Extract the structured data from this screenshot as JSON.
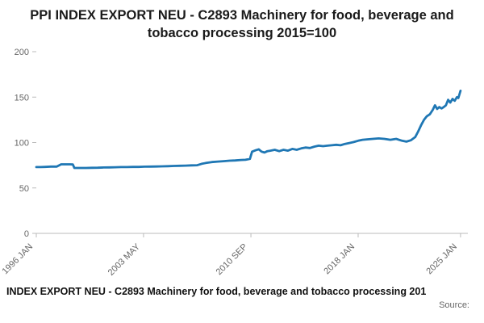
{
  "title": "PPI INDEX EXPORT NEU - C2893 Machinery for food, beverage and tobacco processing 2015=100",
  "legend": "INDEX EXPORT NEU - C2893 Machinery for food, beverage and tobacco processing 201",
  "source_label": "Source:",
  "colors": {
    "line": "#1f77b4",
    "axis": "#bbbbbb",
    "tick_text": "#666666"
  },
  "chart_data": {
    "type": "line",
    "title": "PPI INDEX EXPORT NEU - C2893 Machinery for food, beverage and tobacco processing 2015=100",
    "xlabel": "",
    "ylabel": "",
    "xlim": [
      1996.0,
      2025.5
    ],
    "ylim": [
      0,
      200
    ],
    "grid": false,
    "legend_position": "bottom",
    "yticks": [
      0,
      50,
      100,
      150,
      200
    ],
    "xticks": [
      {
        "label": "1996 JAN",
        "x": 1996.0
      },
      {
        "label": "2003 MAY",
        "x": 2003.33
      },
      {
        "label": "2010 SEP",
        "x": 2010.67
      },
      {
        "label": "2018 JAN",
        "x": 2018.0
      },
      {
        "label": "2025 JAN",
        "x": 2025.0
      }
    ],
    "series": [
      {
        "name": "INDEX EXPORT NEU - C2893 Machinery for food, beverage and tobacco processing",
        "color": "#1f77b4",
        "points": [
          [
            1996.0,
            73
          ],
          [
            1996.3,
            73
          ],
          [
            1996.6,
            73.2
          ],
          [
            1997.0,
            73.5
          ],
          [
            1997.4,
            73.5
          ],
          [
            1997.7,
            76
          ],
          [
            1998.0,
            76
          ],
          [
            1998.3,
            76
          ],
          [
            1998.5,
            75.8
          ],
          [
            1998.6,
            72
          ],
          [
            1999.0,
            72
          ],
          [
            1999.4,
            72
          ],
          [
            1999.8,
            72.2
          ],
          [
            2000.2,
            72.3
          ],
          [
            2000.6,
            72.5
          ],
          [
            2001.0,
            72.6
          ],
          [
            2001.4,
            72.8
          ],
          [
            2001.8,
            73
          ],
          [
            2002.2,
            73
          ],
          [
            2002.6,
            73.2
          ],
          [
            2003.0,
            73.2
          ],
          [
            2003.4,
            73.4
          ],
          [
            2003.8,
            73.5
          ],
          [
            2004.2,
            73.6
          ],
          [
            2004.6,
            73.8
          ],
          [
            2005.0,
            74
          ],
          [
            2005.4,
            74.2
          ],
          [
            2005.8,
            74.4
          ],
          [
            2006.2,
            74.6
          ],
          [
            2006.6,
            74.8
          ],
          [
            2007.0,
            75
          ],
          [
            2007.3,
            76.5
          ],
          [
            2007.6,
            77.5
          ],
          [
            2008.0,
            78.5
          ],
          [
            2008.4,
            79
          ],
          [
            2008.8,
            79.5
          ],
          [
            2009.2,
            80
          ],
          [
            2009.6,
            80.3
          ],
          [
            2010.0,
            80.8
          ],
          [
            2010.3,
            81
          ],
          [
            2010.6,
            82
          ],
          [
            2010.75,
            90
          ],
          [
            2011.0,
            91.5
          ],
          [
            2011.2,
            92.5
          ],
          [
            2011.4,
            90
          ],
          [
            2011.6,
            89
          ],
          [
            2011.8,
            90.5
          ],
          [
            2012.0,
            91
          ],
          [
            2012.3,
            92
          ],
          [
            2012.6,
            90.5
          ],
          [
            2012.9,
            92
          ],
          [
            2013.2,
            91
          ],
          [
            2013.5,
            93
          ],
          [
            2013.8,
            92
          ],
          [
            2014.1,
            93.5
          ],
          [
            2014.4,
            94.5
          ],
          [
            2014.7,
            94
          ],
          [
            2015.0,
            95.5
          ],
          [
            2015.3,
            96.5
          ],
          [
            2015.6,
            96
          ],
          [
            2015.9,
            96.5
          ],
          [
            2016.2,
            97
          ],
          [
            2016.5,
            97.5
          ],
          [
            2016.8,
            97
          ],
          [
            2017.1,
            98.5
          ],
          [
            2017.4,
            99.5
          ],
          [
            2017.7,
            100.5
          ],
          [
            2018.0,
            102
          ],
          [
            2018.3,
            103
          ],
          [
            2018.6,
            103.5
          ],
          [
            2019.0,
            104
          ],
          [
            2019.4,
            104.5
          ],
          [
            2019.8,
            104
          ],
          [
            2020.2,
            103
          ],
          [
            2020.6,
            104
          ],
          [
            2021.0,
            102
          ],
          [
            2021.3,
            101
          ],
          [
            2021.6,
            102.5
          ],
          [
            2021.9,
            106
          ],
          [
            2022.1,
            112
          ],
          [
            2022.3,
            119
          ],
          [
            2022.5,
            125
          ],
          [
            2022.7,
            129
          ],
          [
            2022.9,
            131
          ],
          [
            2023.1,
            136
          ],
          [
            2023.25,
            141
          ],
          [
            2023.4,
            137
          ],
          [
            2023.55,
            139
          ],
          [
            2023.7,
            137.5
          ],
          [
            2023.85,
            139
          ],
          [
            2024.0,
            141
          ],
          [
            2024.15,
            147
          ],
          [
            2024.3,
            144
          ],
          [
            2024.45,
            148
          ],
          [
            2024.6,
            146
          ],
          [
            2024.75,
            150
          ],
          [
            2024.85,
            149
          ],
          [
            2025.0,
            157
          ]
        ]
      }
    ]
  }
}
